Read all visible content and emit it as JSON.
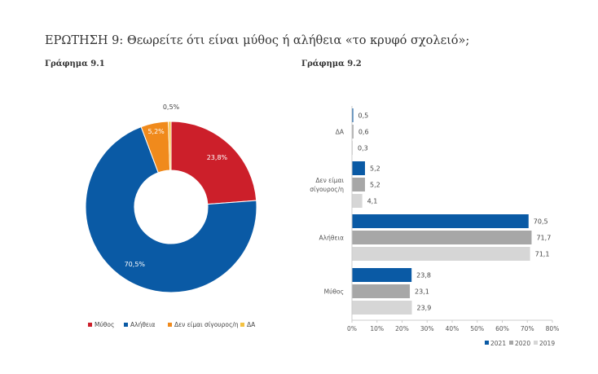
{
  "title": "ΕΡΩΤΗΣΗ 9: Θεωρείτε ότι είναι μύθος ή αλήθεια «το κρυφό σχολειό»;",
  "chart_data": [
    {
      "type": "pie",
      "subtitle": "Γράφημα 9.1",
      "donut": true,
      "categories": [
        "Μύθος",
        "Αλήθεια",
        "Δεν είμαι σίγουρος/η",
        "ΔΑ"
      ],
      "values": [
        23.8,
        70.5,
        5.2,
        0.5
      ],
      "labels": [
        "23,8%",
        "70,5%",
        "5,2%",
        "0,5%"
      ],
      "colors": [
        "#cc1f2a",
        "#0a5aa5",
        "#f08a1c",
        "#f4c242"
      ],
      "legend": "bottom"
    },
    {
      "type": "bar",
      "orientation": "horizontal",
      "subtitle": "Γράφημα 9.2",
      "categories": [
        "ΔΑ",
        "Δεν είμαι σίγουρος/η",
        "Αλήθεια",
        "Μύθος"
      ],
      "category_lines": [
        [
          "ΔΑ"
        ],
        [
          "Δεν είμαι",
          "σίγουρος/η"
        ],
        [
          "Αλήθεια"
        ],
        [
          "Μύθος"
        ]
      ],
      "series": [
        {
          "name": "2021",
          "values": [
            0.5,
            5.2,
            70.5,
            23.8
          ],
          "labels": [
            "0,5",
            "5,2",
            "70,5",
            "23,8"
          ],
          "color": "#0a5aa5"
        },
        {
          "name": "2020",
          "values": [
            0.6,
            5.2,
            71.7,
            23.1
          ],
          "labels": [
            "0,6",
            "5,2",
            "71,7",
            "23,1"
          ],
          "color": "#a7a7a7"
        },
        {
          "name": "2019",
          "values": [
            0.3,
            4.1,
            71.1,
            23.9
          ],
          "labels": [
            "0,3",
            "4,1",
            "71,1",
            "23,9"
          ],
          "color": "#d6d6d6"
        }
      ],
      "xlim": [
        0,
        80
      ],
      "xticks": [
        "0%",
        "10%",
        "20%",
        "30%",
        "40%",
        "50%",
        "60%",
        "70%",
        "80%"
      ],
      "legend": "bottom-right"
    }
  ]
}
